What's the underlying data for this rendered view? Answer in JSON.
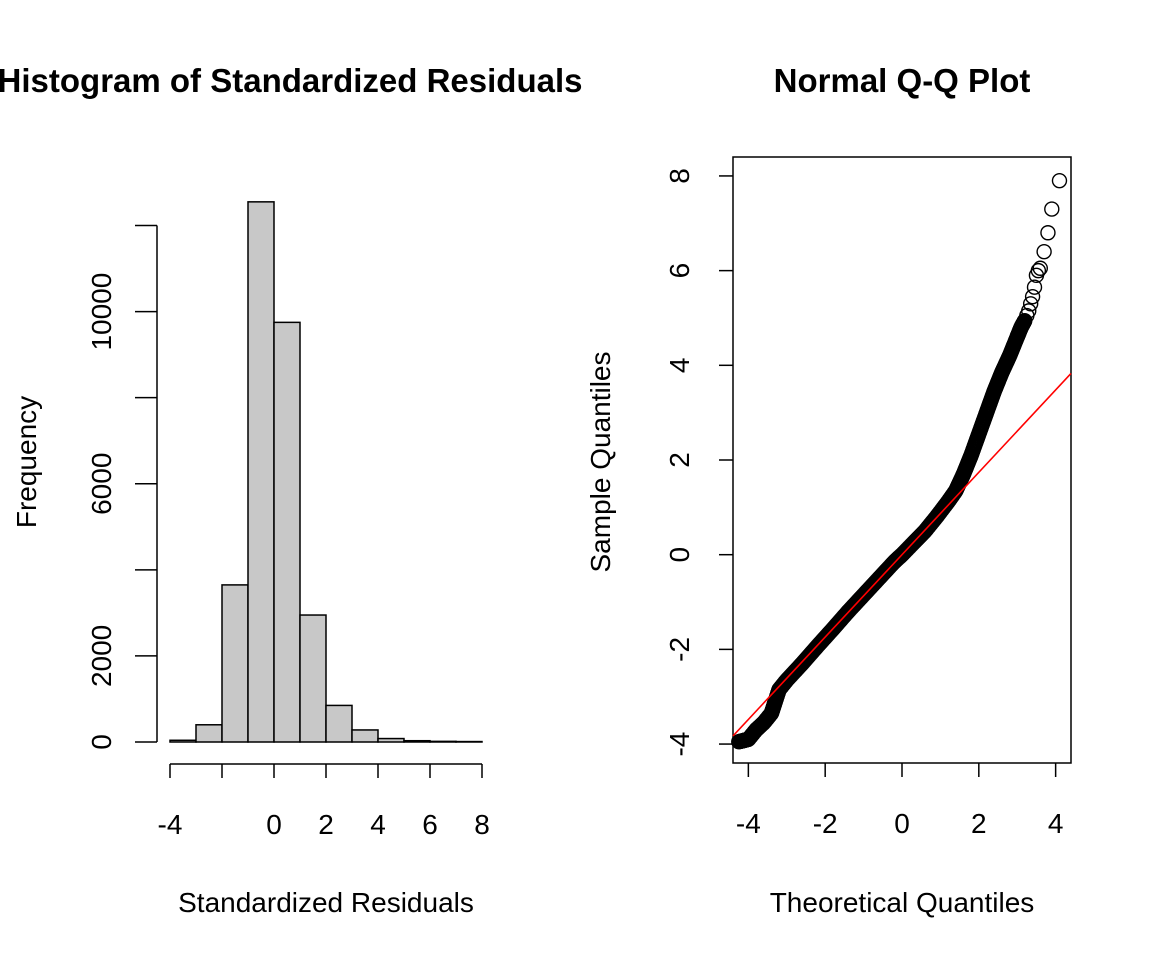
{
  "chart_data": [
    {
      "type": "bar",
      "title": "Histogram of Standardized Residuals",
      "xlabel": "Standardized Residuals",
      "ylabel": "Frequency",
      "bin_edges": [
        -4,
        -3,
        -2,
        -1,
        0,
        1,
        2,
        3,
        4,
        5,
        6,
        7,
        8
      ],
      "values": [
        40,
        400,
        3650,
        12550,
        9750,
        2950,
        850,
        280,
        80,
        30,
        15,
        10
      ],
      "xlim": [
        -4,
        8
      ],
      "ylim": [
        0,
        12500
      ],
      "xticks": [
        "-4",
        "0",
        "2",
        "4",
        "6",
        "8"
      ],
      "xtick_values": [
        -4,
        0,
        2,
        4,
        6,
        8
      ],
      "yticks": [
        "0",
        "2000",
        "6000",
        "10000"
      ],
      "ytick_values": [
        0,
        2000,
        6000,
        10000
      ],
      "minor_yticks": [
        4000,
        8000,
        12000
      ],
      "colors": {
        "bar_fill": "#c8c8c8",
        "bar_stroke": "#000000"
      }
    },
    {
      "type": "scatter",
      "title": "Normal Q-Q Plot",
      "xlabel": "Theoretical Quantiles",
      "ylabel": "Sample Quantiles",
      "xlim": [
        -4.4,
        4.4
      ],
      "ylim": [
        -4.4,
        8.4
      ],
      "xticks": [
        "-4",
        "-2",
        "0",
        "2",
        "4"
      ],
      "xtick_values": [
        -4,
        -2,
        0,
        2,
        4
      ],
      "yticks": [
        "-4",
        "-2",
        "0",
        "2",
        "4",
        "6",
        "8"
      ],
      "ytick_values": [
        -4,
        -2,
        0,
        2,
        4,
        6,
        8
      ],
      "reference_line": {
        "slope": 0.87,
        "intercept": 0.0,
        "color": "#ff0000"
      },
      "curve": [
        [
          -4.25,
          -3.95
        ],
        [
          -4.0,
          -3.9
        ],
        [
          -3.8,
          -3.7
        ],
        [
          -3.6,
          -3.55
        ],
        [
          -3.4,
          -3.35
        ],
        [
          -3.3,
          -3.1
        ],
        [
          -3.2,
          -2.85
        ],
        [
          -3.0,
          -2.65
        ],
        [
          -2.6,
          -2.3
        ],
        [
          -2.2,
          -1.93
        ],
        [
          -1.8,
          -1.57
        ],
        [
          -1.4,
          -1.2
        ],
        [
          -1.0,
          -0.85
        ],
        [
          -0.6,
          -0.5
        ],
        [
          -0.2,
          -0.15
        ],
        [
          0.0,
          0.0
        ],
        [
          0.3,
          0.25
        ],
        [
          0.6,
          0.5
        ],
        [
          0.9,
          0.8
        ],
        [
          1.2,
          1.12
        ],
        [
          1.4,
          1.35
        ],
        [
          1.6,
          1.7
        ],
        [
          1.8,
          2.1
        ],
        [
          2.0,
          2.55
        ],
        [
          2.2,
          3.0
        ],
        [
          2.4,
          3.45
        ],
        [
          2.6,
          3.85
        ],
        [
          2.8,
          4.2
        ],
        [
          3.0,
          4.6
        ],
        [
          3.1,
          4.8
        ],
        [
          3.2,
          4.95
        ]
      ],
      "tail_points": [
        [
          3.25,
          5.05
        ],
        [
          3.3,
          5.15
        ],
        [
          3.35,
          5.3
        ],
        [
          3.4,
          5.45
        ],
        [
          3.45,
          5.65
        ],
        [
          3.5,
          5.9
        ],
        [
          3.55,
          6.0
        ],
        [
          3.6,
          6.05
        ],
        [
          3.7,
          6.4
        ],
        [
          3.8,
          6.8
        ],
        [
          3.9,
          7.3
        ],
        [
          4.1,
          7.9
        ]
      ],
      "colors": {
        "points": "#000000",
        "line": "#ff0000"
      }
    }
  ]
}
